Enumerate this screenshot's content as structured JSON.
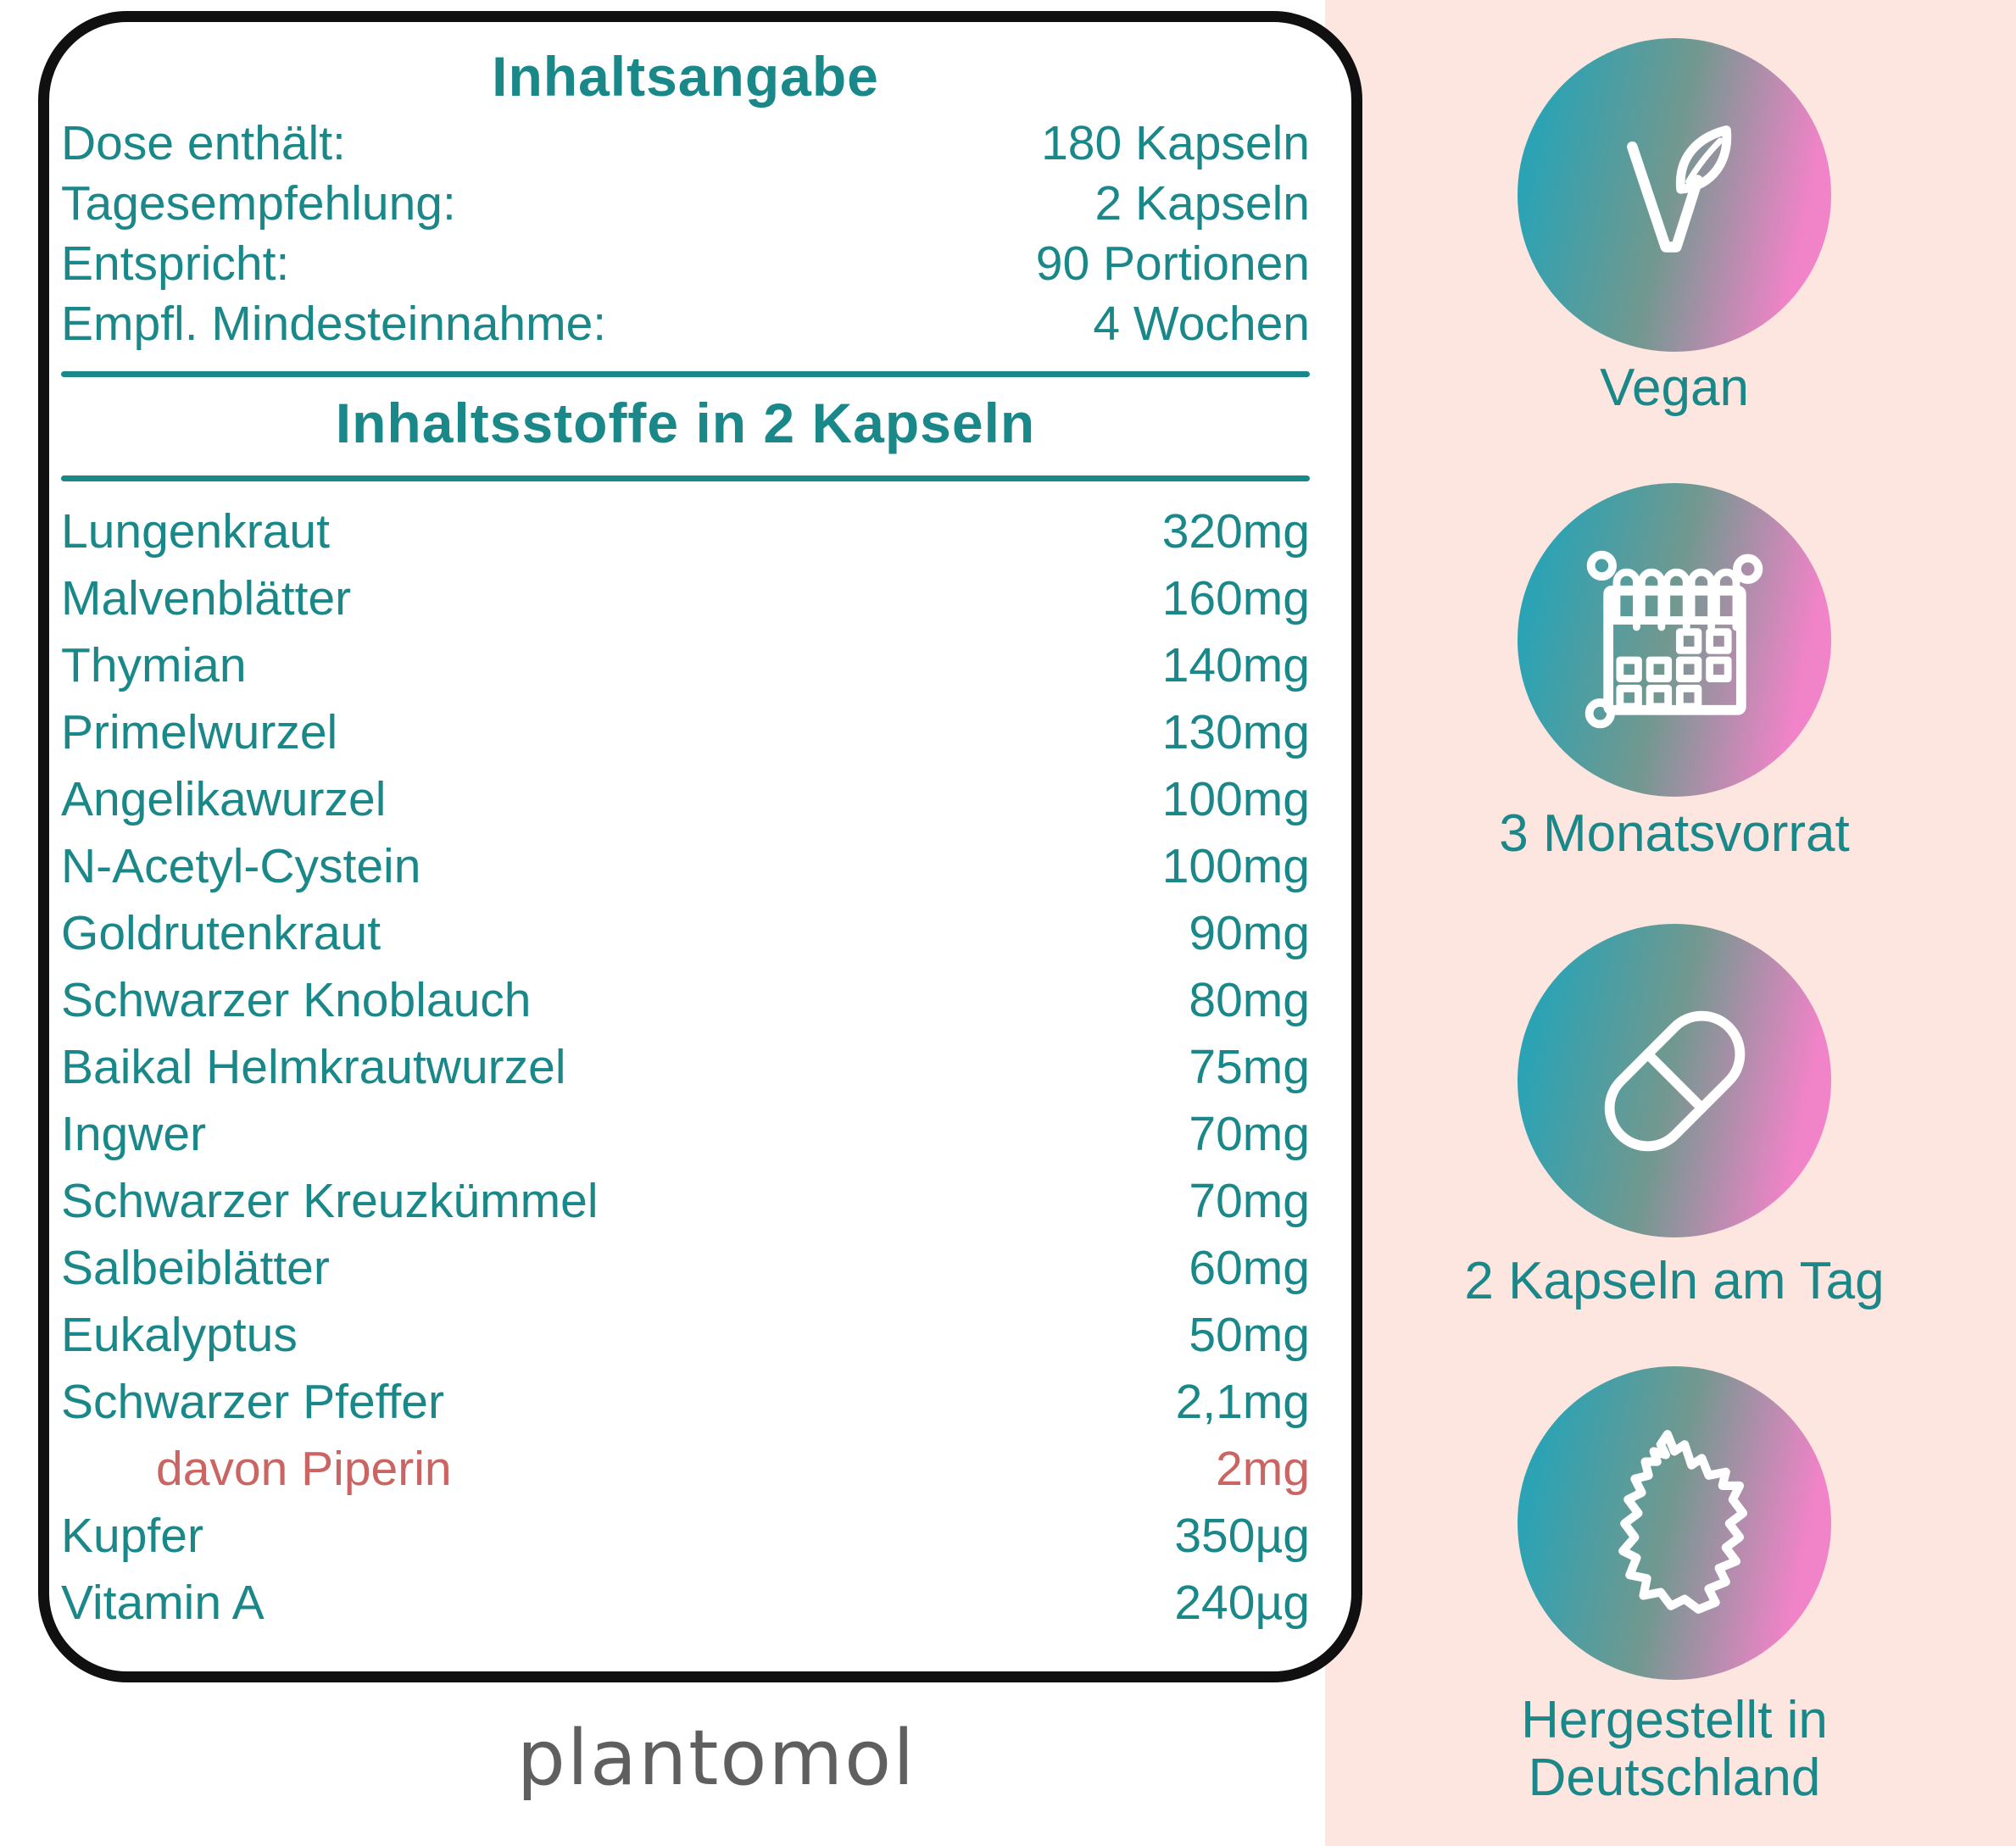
{
  "card": {
    "title": "Inhaltsangabe",
    "info_rows": [
      {
        "label": "Dose enthält:",
        "value": "180 Kapseln"
      },
      {
        "label": "Tagesempfehlung:",
        "value": "2 Kapseln"
      },
      {
        "label": "Entspricht:",
        "value": "90 Portionen"
      },
      {
        "label": "Empfl. Mindesteinnahme:",
        "value": "4 Wochen"
      }
    ],
    "section_header": "Inhaltsstoffe in 2 Kapseln",
    "ingredients": [
      {
        "name": "Lungenkraut",
        "amount": "320mg",
        "highlight": false
      },
      {
        "name": "Malvenblätter",
        "amount": "160mg",
        "highlight": false
      },
      {
        "name": "Thymian",
        "amount": "140mg",
        "highlight": false
      },
      {
        "name": "Primelwurzel",
        "amount": "130mg",
        "highlight": false
      },
      {
        "name": "Angelikawurzel",
        "amount": "100mg",
        "highlight": false
      },
      {
        "name": "N-Acetyl-Cystein",
        "amount": "100mg",
        "highlight": false
      },
      {
        "name": "Goldrutenkraut",
        "amount": "90mg",
        "highlight": false
      },
      {
        "name": "Schwarzer Knoblauch",
        "amount": "80mg",
        "highlight": false
      },
      {
        "name": "Baikal Helmkrautwurzel",
        "amount": "75mg",
        "highlight": false
      },
      {
        "name": "Ingwer",
        "amount": "70mg",
        "highlight": false
      },
      {
        "name": "Schwarzer Kreuzkümmel",
        "amount": "70mg",
        "highlight": false
      },
      {
        "name": "Salbeiblätter",
        "amount": "60mg",
        "highlight": false
      },
      {
        "name": "Eukalyptus",
        "amount": "50mg",
        "highlight": false
      },
      {
        "name": "Schwarzer Pfeffer",
        "amount": "2,1mg",
        "highlight": false
      },
      {
        "name": "davon Piperin",
        "amount": "2mg",
        "highlight": true
      },
      {
        "name": "Kupfer",
        "amount": "350µg",
        "highlight": false
      },
      {
        "name": "Vitamin A",
        "amount": "240µg",
        "highlight": false
      }
    ]
  },
  "brand": {
    "logo_text": "plantomol"
  },
  "badges": [
    {
      "icon": "vegan-leaf-icon",
      "label_lines": [
        "Vegan"
      ]
    },
    {
      "icon": "calendar-icon",
      "label_lines": [
        "3 Monatsvorrat"
      ]
    },
    {
      "icon": "capsule-icon",
      "label_lines": [
        "2 Kapseln am Tag"
      ]
    },
    {
      "icon": "germany-map-icon",
      "label_lines": [
        "Hergestellt in",
        "Deutschland"
      ]
    }
  ],
  "colors": {
    "teal": "#1a8789",
    "highlight_red": "#cb6563",
    "panel_pink": "#fce6df",
    "logo_gray": "#5f5f5f",
    "card_border": "#101010",
    "gradient_teal": "#2ba3b4",
    "gradient_mid": "#71988f",
    "gradient_pink": "#f183c8"
  }
}
